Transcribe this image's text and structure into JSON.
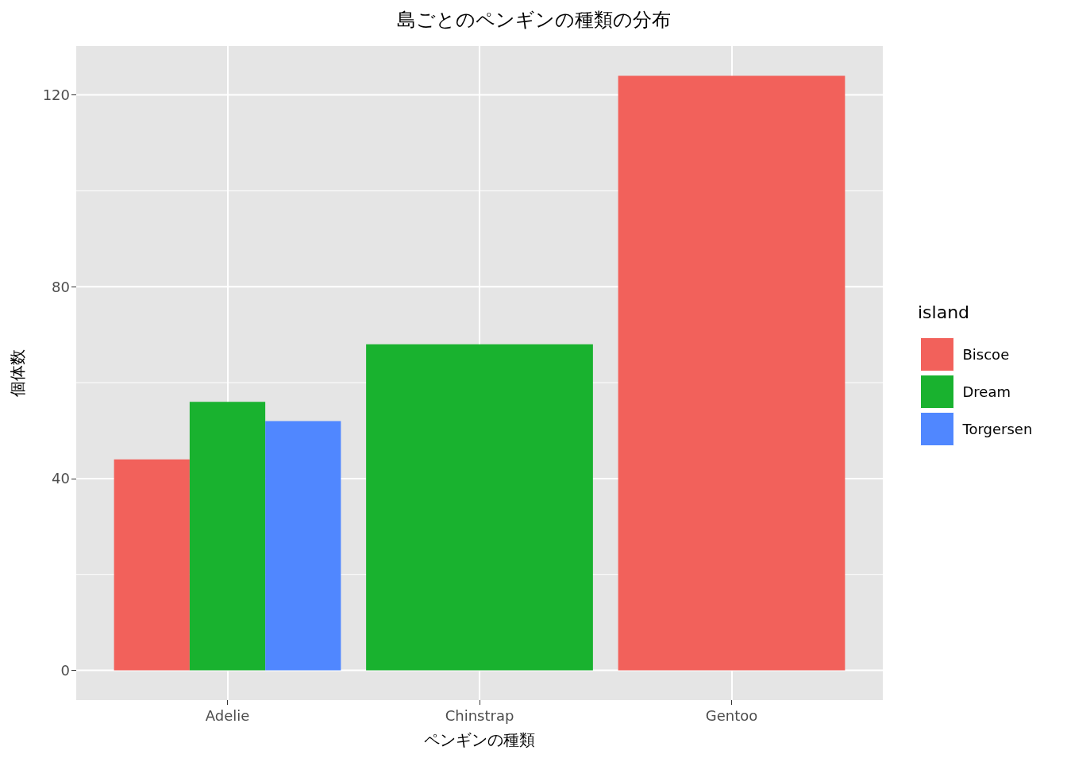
{
  "chart_data": {
    "type": "bar",
    "title": "島ごとのペンギンの種類の分布",
    "xlabel": "ペンギンの種類",
    "ylabel": "個体数",
    "legend_title": "island",
    "categories": [
      "Adelie",
      "Chinstrap",
      "Gentoo"
    ],
    "series": [
      {
        "name": "Biscoe",
        "color": "#f2615b",
        "values": [
          44,
          null,
          124
        ]
      },
      {
        "name": "Dream",
        "color": "#19b22f",
        "values": [
          56,
          68,
          null
        ]
      },
      {
        "name": "Torgersen",
        "color": "#5087ff",
        "values": [
          52,
          null,
          null
        ]
      }
    ],
    "ylim": [
      -6.2,
      130.2
    ],
    "yticks": [
      0,
      {
        "value": 20,
        "label": null
      },
      40,
      {
        "value": 60,
        "label": null
      },
      80,
      {
        "value": 100,
        "label": null
      },
      120
    ],
    "grid": true,
    "legend": "right"
  }
}
